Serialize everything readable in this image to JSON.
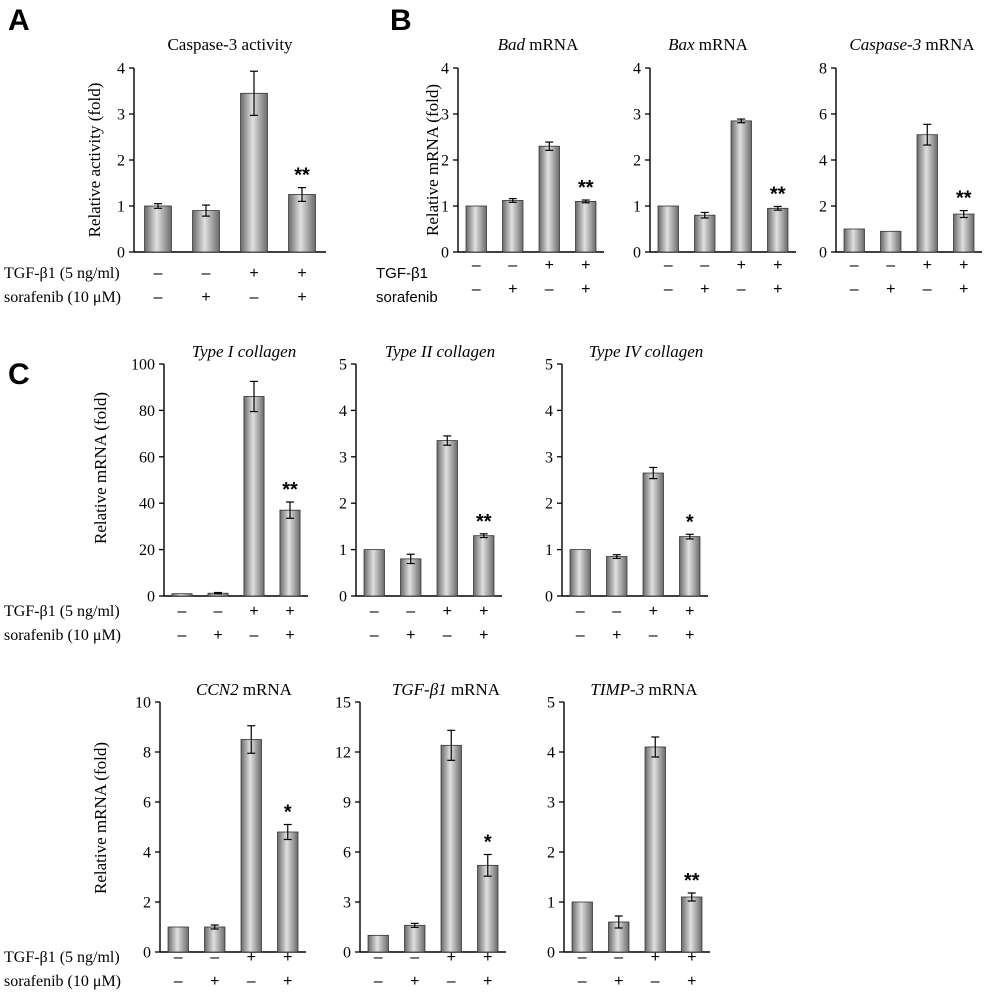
{
  "panel_labels": {
    "a": "A",
    "b": "B",
    "c": "C"
  },
  "colors": {
    "bar_dark": "#6a6a6a",
    "bar_light": "#e0e0e0",
    "axis": "#000000"
  },
  "rows": {
    "tgf_long": "TGF-β1 (5 ng/ml)",
    "sor_long": "sorafenib (10 μM)",
    "tgf_short": "TGF-β1",
    "sor_short": "sorafenib",
    "tgf_signs": [
      "–",
      "–",
      "+",
      "+"
    ],
    "sor_signs": [
      "–",
      "+",
      "–",
      "+"
    ]
  },
  "ylabels": {
    "activity": "Relative activity (fold)",
    "mrna": "Relative mRNA (fold)"
  },
  "chart_data": [
    {
      "id": "a1",
      "type": "bar",
      "title": [
        {
          "t": "Caspase-3 activity",
          "i": false
        }
      ],
      "ylabel": "Relative activity (fold)",
      "ylim": [
        0,
        4
      ],
      "yticks": [
        "0",
        "1",
        "2",
        "3",
        "4"
      ],
      "values": [
        1.0,
        0.9,
        3.45,
        1.25
      ],
      "errors": [
        0.05,
        0.12,
        0.48,
        0.15
      ],
      "sig": [
        "",
        "",
        "",
        "**"
      ]
    },
    {
      "id": "b1",
      "type": "bar",
      "title": [
        {
          "t": "Bad",
          "i": true
        },
        {
          "t": " mRNA",
          "i": false
        }
      ],
      "ylabel": "Relative mRNA (fold)",
      "ylim": [
        0,
        4
      ],
      "yticks": [
        "0",
        "1",
        "2",
        "3",
        "4"
      ],
      "values": [
        1.0,
        1.12,
        2.3,
        1.1
      ],
      "errors": [
        0.0,
        0.04,
        0.09,
        0.03
      ],
      "sig": [
        "",
        "",
        "",
        "**"
      ]
    },
    {
      "id": "b2",
      "type": "bar",
      "title": [
        {
          "t": "Bax",
          "i": true
        },
        {
          "t": " mRNA",
          "i": false
        }
      ],
      "ylabel": "",
      "ylim": [
        0,
        4
      ],
      "yticks": [
        "0",
        "1",
        "2",
        "3",
        "4"
      ],
      "values": [
        1.0,
        0.8,
        2.85,
        0.95
      ],
      "errors": [
        0.0,
        0.06,
        0.04,
        0.04
      ],
      "sig": [
        "",
        "",
        "",
        "**"
      ]
    },
    {
      "id": "b3",
      "type": "bar",
      "title": [
        {
          "t": "Caspase-3",
          "i": true
        },
        {
          "t": " mRNA",
          "i": false
        }
      ],
      "ylabel": "",
      "ylim": [
        0,
        8
      ],
      "yticks": [
        "0",
        "2",
        "4",
        "6",
        "8"
      ],
      "values": [
        1.0,
        0.9,
        5.1,
        1.65
      ],
      "errors": [
        0.0,
        0.0,
        0.45,
        0.15
      ],
      "sig": [
        "",
        "",
        "",
        "**"
      ]
    },
    {
      "id": "c1",
      "type": "bar",
      "title": [
        {
          "t": "Type I collagen",
          "i": true
        }
      ],
      "ylabel": "Relative mRNA (fold)",
      "ylim": [
        0,
        100
      ],
      "yticks": [
        "0",
        "20",
        "40",
        "60",
        "80",
        "100"
      ],
      "values": [
        1.0,
        1.2,
        86,
        37
      ],
      "errors": [
        0.0,
        0.3,
        6.5,
        3.5
      ],
      "sig": [
        "",
        "",
        "",
        "**"
      ]
    },
    {
      "id": "c2",
      "type": "bar",
      "title": [
        {
          "t": "Type II collagen",
          "i": true
        }
      ],
      "ylabel": "",
      "ylim": [
        0,
        5
      ],
      "yticks": [
        "0",
        "1",
        "2",
        "3",
        "4",
        "5"
      ],
      "values": [
        1.0,
        0.8,
        3.35,
        1.3
      ],
      "errors": [
        0.0,
        0.1,
        0.1,
        0.04
      ],
      "sig": [
        "",
        "",
        "",
        "**"
      ]
    },
    {
      "id": "c3",
      "type": "bar",
      "title": [
        {
          "t": "Type IV collagen",
          "i": true
        }
      ],
      "ylabel": "",
      "ylim": [
        0,
        5
      ],
      "yticks": [
        "0",
        "1",
        "2",
        "3",
        "4",
        "5"
      ],
      "values": [
        1.0,
        0.85,
        2.65,
        1.28
      ],
      "errors": [
        0.0,
        0.04,
        0.12,
        0.05
      ],
      "sig": [
        "",
        "",
        "",
        "*"
      ]
    },
    {
      "id": "c4",
      "type": "bar",
      "title": [
        {
          "t": "CCN2",
          "i": true
        },
        {
          "t": " mRNA",
          "i": false
        }
      ],
      "ylabel": "Relative mRNA (fold)",
      "ylim": [
        0,
        10
      ],
      "yticks": [
        "0",
        "2",
        "4",
        "6",
        "8",
        "10"
      ],
      "values": [
        1.0,
        1.0,
        8.5,
        4.8
      ],
      "errors": [
        0.0,
        0.08,
        0.55,
        0.3
      ],
      "sig": [
        "",
        "",
        "",
        "*"
      ]
    },
    {
      "id": "c5",
      "type": "bar",
      "title": [
        {
          "t": "TGF-β1",
          "i": true
        },
        {
          "t": " mRNA",
          "i": false
        }
      ],
      "ylabel": "",
      "ylim": [
        0,
        15
      ],
      "yticks": [
        "0",
        "3",
        "6",
        "9",
        "12",
        "15"
      ],
      "values": [
        1.0,
        1.6,
        12.4,
        5.2
      ],
      "errors": [
        0.0,
        0.12,
        0.9,
        0.65
      ],
      "sig": [
        "",
        "",
        "",
        "*"
      ]
    },
    {
      "id": "c6",
      "type": "bar",
      "title": [
        {
          "t": "TIMP-3",
          "i": true
        },
        {
          "t": " mRNA",
          "i": false
        }
      ],
      "ylabel": "",
      "ylim": [
        0,
        5
      ],
      "yticks": [
        "0",
        "1",
        "2",
        "3",
        "4",
        "5"
      ],
      "values": [
        1.0,
        0.6,
        4.1,
        1.1
      ],
      "errors": [
        0.0,
        0.12,
        0.2,
        0.08
      ],
      "sig": [
        "",
        "",
        "",
        "**"
      ]
    }
  ]
}
